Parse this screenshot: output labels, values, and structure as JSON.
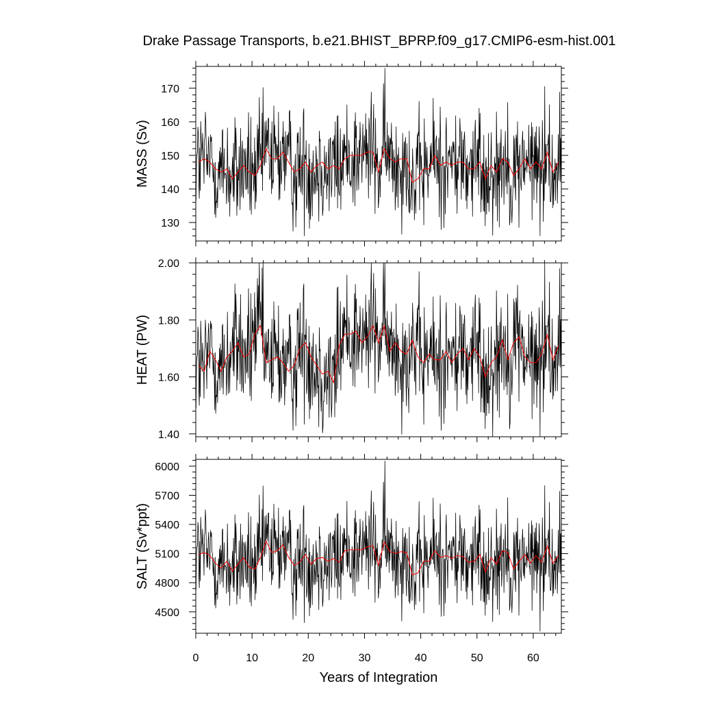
{
  "chart_data": {
    "type": "line",
    "title": "Drake Passage Transports, b.e21.BHIST_BPRP.f09_g17.CMIP6-esm-hist.001",
    "xlabel": "Years of Integration",
    "x_range": [
      0,
      65
    ],
    "x_ticks": [
      0,
      10,
      20,
      30,
      40,
      50,
      60
    ],
    "x_tick_labels": [
      "0",
      "10",
      "20",
      "30",
      "40",
      "50",
      "60"
    ],
    "grid": false,
    "colors": {
      "monthly": "#000000",
      "annual": "#ff0000"
    },
    "panels": [
      {
        "ylabel": "MASS (Sv)",
        "ylim": [
          124.5,
          176.5
        ],
        "y_ticks": [
          130,
          140,
          150,
          160,
          170
        ],
        "y_tick_labels": [
          "130",
          "140",
          "150",
          "160",
          "170"
        ],
        "series": [
          {
            "key": "monthly",
            "approx_mean": 147.6,
            "approx_std": 8.5,
            "approx_min": 126,
            "approx_max": 176
          },
          {
            "key": "annual",
            "x": [
              0.5,
              1.5,
              2.5,
              3.5,
              4.5,
              5.5,
              6.5,
              7.5,
              8.5,
              9.5,
              10.5,
              11.5,
              12.5,
              13.5,
              14.5,
              15.5,
              16.5,
              17.5,
              18.5,
              19.5,
              20.5,
              21.5,
              22.5,
              23.5,
              24.5,
              25.5,
              26.5,
              27.5,
              28.5,
              29.5,
              30.5,
              31.5,
              32.5,
              33.5,
              34.5,
              35.5,
              36.5,
              37.5,
              38.5,
              39.5,
              40.5,
              41.5,
              42.5,
              43.5,
              44.5,
              45.5,
              46.5,
              47.5,
              48.5,
              49.5,
              50.5,
              51.5,
              52.5,
              53.5,
              54.5,
              55.5,
              56.5,
              57.5,
              58.5,
              59.5,
              60.5,
              61.5,
              62.5,
              63.5,
              64.5
            ],
            "values": [
              148,
              149,
              148,
              146,
              145,
              146,
              143,
              145,
              147,
              145,
              144,
              147,
              152,
              149,
              149,
              151,
              148,
              145,
              146,
              148,
              145,
              147,
              148,
              146,
              147,
              146,
              149,
              150,
              150,
              150,
              151,
              151,
              145,
              152,
              149,
              148,
              149,
              149,
              142,
              143,
              146,
              146,
              150,
              147,
              148,
              147,
              148,
              148,
              146,
              146,
              148,
              143,
              147,
              145,
              149,
              148,
              144,
              146,
              149,
              146,
              148,
              146,
              151,
              145,
              148
            ]
          }
        ]
      },
      {
        "ylabel": "HEAT (PW)",
        "ylim": [
          1.39,
          2.0
        ],
        "y_ticks": [
          1.4,
          1.6,
          1.8,
          2.0
        ],
        "y_tick_labels": [
          "1.40",
          "1.60",
          "1.80",
          "2.00"
        ],
        "series": [
          {
            "key": "monthly",
            "approx_mean": 1.67,
            "approx_std": 0.11,
            "approx_min": 1.39,
            "approx_max": 2.0
          },
          {
            "key": "annual",
            "x": [
              0.5,
              1.5,
              2.5,
              3.5,
              4.5,
              5.5,
              6.5,
              7.5,
              8.5,
              9.5,
              10.5,
              11.5,
              12.5,
              13.5,
              14.5,
              15.5,
              16.5,
              17.5,
              18.5,
              19.5,
              20.5,
              21.5,
              22.5,
              23.5,
              24.5,
              25.5,
              26.5,
              27.5,
              28.5,
              29.5,
              30.5,
              31.5,
              32.5,
              33.5,
              34.5,
              35.5,
              36.5,
              37.5,
              38.5,
              39.5,
              40.5,
              41.5,
              42.5,
              43.5,
              44.5,
              45.5,
              46.5,
              47.5,
              48.5,
              49.5,
              50.5,
              51.5,
              52.5,
              53.5,
              54.5,
              55.5,
              56.5,
              57.5,
              58.5,
              59.5,
              60.5,
              61.5,
              62.5,
              63.5,
              64.5
            ],
            "values": [
              1.64,
              1.62,
              1.69,
              1.66,
              1.62,
              1.67,
              1.69,
              1.72,
              1.67,
              1.68,
              1.75,
              1.78,
              1.65,
              1.66,
              1.67,
              1.65,
              1.62,
              1.64,
              1.7,
              1.72,
              1.67,
              1.64,
              1.61,
              1.62,
              1.58,
              1.71,
              1.75,
              1.75,
              1.76,
              1.72,
              1.74,
              1.78,
              1.72,
              1.78,
              1.69,
              1.72,
              1.69,
              1.68,
              1.73,
              1.67,
              1.65,
              1.68,
              1.66,
              1.66,
              1.69,
              1.65,
              1.68,
              1.7,
              1.66,
              1.7,
              1.67,
              1.6,
              1.65,
              1.67,
              1.73,
              1.66,
              1.72,
              1.74,
              1.67,
              1.65,
              1.65,
              1.68,
              1.75,
              1.66,
              1.71
            ]
          }
        ]
      },
      {
        "ylabel": "SALT (Sv*ppt)",
        "ylim": [
          4280,
          6070
        ],
        "y_ticks": [
          4500,
          4800,
          5100,
          5400,
          5700,
          6000
        ],
        "y_tick_labels": [
          "4500",
          "4800",
          "5100",
          "5400",
          "5700",
          "6000"
        ],
        "series": [
          {
            "key": "monthly",
            "approx_mean": 5060,
            "approx_std": 270,
            "approx_min": 4290,
            "approx_max": 6060
          },
          {
            "key": "annual",
            "x": [
              0.5,
              1.5,
              2.5,
              3.5,
              4.5,
              5.5,
              6.5,
              7.5,
              8.5,
              9.5,
              10.5,
              11.5,
              12.5,
              13.5,
              14.5,
              15.5,
              16.5,
              17.5,
              18.5,
              19.5,
              20.5,
              21.5,
              22.5,
              23.5,
              24.5,
              25.5,
              26.5,
              27.5,
              28.5,
              29.5,
              30.5,
              31.5,
              32.5,
              33.5,
              34.5,
              35.5,
              36.5,
              37.5,
              38.5,
              39.5,
              40.5,
              41.5,
              42.5,
              43.5,
              44.5,
              45.5,
              46.5,
              47.5,
              48.5,
              49.5,
              50.5,
              51.5,
              52.5,
              53.5,
              54.5,
              55.5,
              56.5,
              57.5,
              58.5,
              59.5,
              60.5,
              61.5,
              62.5,
              63.5,
              64.5
            ],
            "values": [
              5090,
              5110,
              5080,
              5000,
              4950,
              5020,
              4920,
              4990,
              5060,
              4960,
              4940,
              5060,
              5230,
              5110,
              5130,
              5190,
              5060,
              4980,
              5010,
              5090,
              4990,
              5050,
              5060,
              5020,
              5050,
              5010,
              5130,
              5140,
              5140,
              5140,
              5170,
              5180,
              4980,
              5220,
              5120,
              5100,
              5120,
              5110,
              4880,
              4900,
              5020,
              5020,
              5130,
              5060,
              5080,
              5050,
              5080,
              5070,
              5010,
              5020,
              5090,
              4910,
              5060,
              4990,
              5130,
              5110,
              4940,
              5020,
              5090,
              5000,
              5080,
              5010,
              5180,
              5000,
              5080
            ]
          }
        ]
      }
    ]
  }
}
